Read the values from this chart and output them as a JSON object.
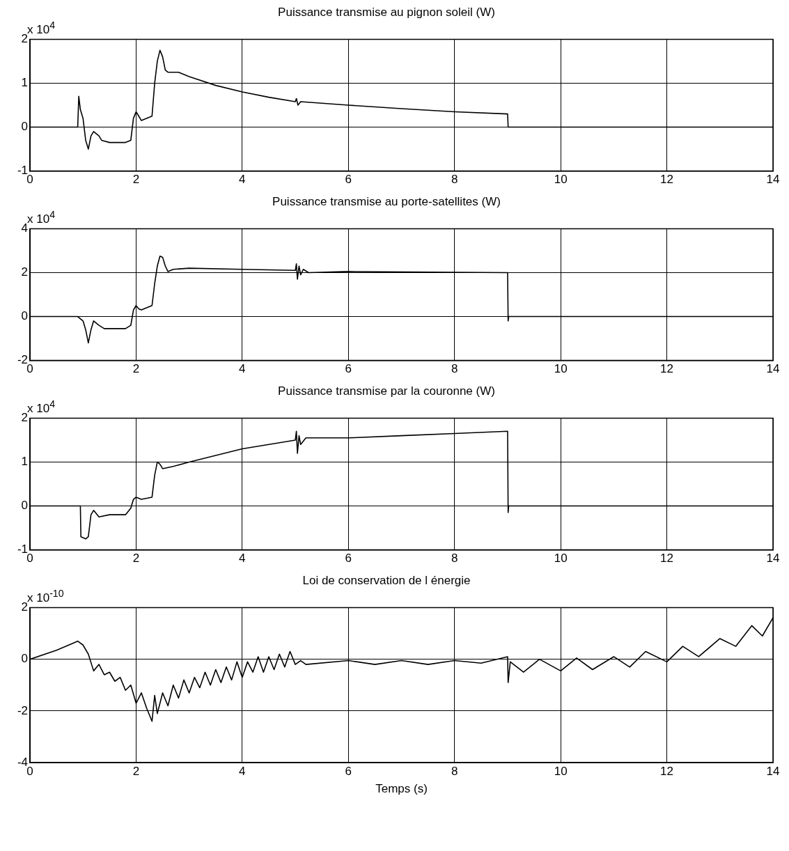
{
  "chart_data": [
    {
      "type": "line",
      "title": "Puissance transmise au pignon soleil (W)",
      "annotations": [
        "x 10$^{4}$"
      ],
      "xlim": [
        0,
        14
      ],
      "xticks": [
        0,
        2,
        4,
        6,
        8,
        10,
        12,
        14
      ],
      "ylim": [
        -1,
        2
      ],
      "yticks": [
        -1,
        0,
        1,
        2
      ],
      "grid": true,
      "legend": false,
      "marker": "none",
      "line_style": "solid",
      "series": [
        {
          "color": "#000000",
          "x": [
            0,
            0.9,
            0.92,
            0.95,
            1.0,
            1.05,
            1.1,
            1.15,
            1.2,
            1.3,
            1.35,
            1.5,
            1.8,
            1.9,
            1.95,
            2.0,
            2.05,
            2.1,
            2.3,
            2.35,
            2.4,
            2.45,
            2.5,
            2.55,
            2.6,
            2.8,
            3.0,
            3.5,
            4,
            4.5,
            5,
            5.02,
            5.05,
            5.1,
            6,
            7,
            8,
            9,
            9.01,
            14
          ],
          "values": [
            0,
            0,
            0.7,
            0.4,
            0.2,
            -0.3,
            -0.5,
            -0.2,
            -0.1,
            -0.2,
            -0.3,
            -0.35,
            -0.35,
            -0.3,
            0.2,
            0.35,
            0.25,
            0.15,
            0.25,
            1.0,
            1.5,
            1.75,
            1.6,
            1.3,
            1.25,
            1.25,
            1.15,
            0.95,
            0.8,
            0.68,
            0.58,
            0.65,
            0.5,
            0.58,
            0.5,
            0.42,
            0.35,
            0.3,
            0,
            0
          ]
        }
      ]
    },
    {
      "type": "line",
      "title": "Puissance transmise au porte-satellites (W)",
      "annotations": [
        "x 10$^{4}$"
      ],
      "xlim": [
        0,
        14
      ],
      "xticks": [
        0,
        2,
        4,
        6,
        8,
        10,
        12,
        14
      ],
      "ylim": [
        -2,
        4
      ],
      "yticks": [
        -2,
        0,
        2,
        4
      ],
      "grid": true,
      "legend": false,
      "marker": "none",
      "line_style": "solid",
      "series": [
        {
          "color": "#000000",
          "x": [
            0,
            0.9,
            1.0,
            1.05,
            1.1,
            1.15,
            1.2,
            1.3,
            1.4,
            1.8,
            1.9,
            1.95,
            2.0,
            2.05,
            2.1,
            2.3,
            2.35,
            2.4,
            2.45,
            2.5,
            2.55,
            2.6,
            2.7,
            3.0,
            4.0,
            5.0,
            5.02,
            5.04,
            5.07,
            5.1,
            5.15,
            5.25,
            6,
            9,
            9.01,
            9.02,
            14
          ],
          "values": [
            0,
            0,
            -0.2,
            -0.6,
            -1.2,
            -0.6,
            -0.2,
            -0.4,
            -0.55,
            -0.55,
            -0.4,
            0.3,
            0.5,
            0.35,
            0.3,
            0.5,
            1.5,
            2.3,
            2.75,
            2.7,
            2.3,
            2.05,
            2.15,
            2.2,
            2.15,
            2.1,
            2.4,
            1.7,
            2.3,
            1.9,
            2.15,
            2.0,
            2.05,
            2.0,
            -0.2,
            0,
            0
          ]
        }
      ]
    },
    {
      "type": "line",
      "title": "Puissance transmise par la couronne (W)",
      "annotations": [
        "x 10$^{4}$"
      ],
      "xlim": [
        0,
        14
      ],
      "xticks": [
        0,
        2,
        4,
        6,
        8,
        10,
        12,
        14
      ],
      "ylim": [
        -1,
        2
      ],
      "yticks": [
        -1,
        0,
        1,
        2
      ],
      "grid": true,
      "legend": false,
      "marker": "none",
      "line_style": "solid",
      "series": [
        {
          "color": "#000000",
          "x": [
            0,
            0.95,
            0.96,
            1.05,
            1.1,
            1.15,
            1.2,
            1.3,
            1.5,
            1.8,
            1.9,
            1.95,
            2.0,
            2.1,
            2.3,
            2.35,
            2.4,
            2.45,
            2.5,
            2.7,
            3,
            3.5,
            4,
            4.5,
            5.0,
            5.02,
            5.04,
            5.07,
            5.1,
            5.2,
            6,
            7,
            8,
            9,
            9.01,
            9.02,
            14
          ],
          "values": [
            0,
            0,
            -0.7,
            -0.75,
            -0.7,
            -0.2,
            -0.1,
            -0.25,
            -0.2,
            -0.2,
            -0.05,
            0.15,
            0.2,
            0.15,
            0.2,
            0.7,
            1.0,
            0.95,
            0.85,
            0.9,
            1.0,
            1.15,
            1.3,
            1.4,
            1.5,
            1.7,
            1.2,
            1.6,
            1.4,
            1.55,
            1.55,
            1.6,
            1.65,
            1.7,
            -0.15,
            0,
            0
          ]
        }
      ]
    },
    {
      "type": "line",
      "title": "Loi de conservation de l énergie",
      "xlabel": "Temps (s)",
      "annotations": [
        "x 10$^{-10}$"
      ],
      "xlim": [
        0,
        14
      ],
      "xticks": [
        0,
        2,
        4,
        6,
        8,
        10,
        12,
        14
      ],
      "ylim": [
        -4,
        2
      ],
      "yticks": [
        -4,
        -2,
        0,
        2
      ],
      "grid": true,
      "legend": false,
      "marker": "none",
      "line_style": "solid",
      "series": [
        {
          "color": "#000000",
          "x": [
            0,
            0.5,
            0.9,
            1.0,
            1.1,
            1.2,
            1.3,
            1.4,
            1.5,
            1.6,
            1.7,
            1.8,
            1.9,
            2.0,
            2.1,
            2.2,
            2.3,
            2.35,
            2.4,
            2.5,
            2.6,
            2.7,
            2.8,
            2.9,
            3.0,
            3.1,
            3.2,
            3.3,
            3.4,
            3.5,
            3.6,
            3.7,
            3.8,
            3.9,
            4.0,
            4.1,
            4.2,
            4.3,
            4.4,
            4.5,
            4.6,
            4.7,
            4.8,
            4.9,
            5.0,
            5.1,
            5.2,
            6,
            6.5,
            7,
            7.5,
            8,
            8.5,
            9,
            9.01,
            9.05,
            9.3,
            9.6,
            10,
            10.3,
            10.6,
            11,
            11.3,
            11.6,
            12,
            12.3,
            12.6,
            13,
            13.3,
            13.6,
            13.8,
            14
          ],
          "values": [
            0,
            0.35,
            0.7,
            0.55,
            0.2,
            -0.45,
            -0.2,
            -0.6,
            -0.5,
            -0.85,
            -0.7,
            -1.2,
            -1.0,
            -1.7,
            -1.3,
            -1.9,
            -2.4,
            -1.4,
            -2.1,
            -1.3,
            -1.8,
            -1.0,
            -1.5,
            -0.8,
            -1.3,
            -0.7,
            -1.1,
            -0.5,
            -1.0,
            -0.4,
            -0.9,
            -0.3,
            -0.8,
            -0.1,
            -0.7,
            -0.1,
            -0.5,
            0.1,
            -0.5,
            0.1,
            -0.4,
            0.2,
            -0.3,
            0.3,
            -0.2,
            -0.05,
            -0.2,
            -0.05,
            -0.2,
            -0.05,
            -0.2,
            -0.05,
            -0.15,
            0.1,
            -0.9,
            -0.1,
            -0.5,
            0.0,
            -0.45,
            0.05,
            -0.4,
            0.1,
            -0.3,
            0.3,
            -0.1,
            0.5,
            0.1,
            0.8,
            0.5,
            1.3,
            0.9,
            1.6
          ]
        }
      ]
    }
  ]
}
